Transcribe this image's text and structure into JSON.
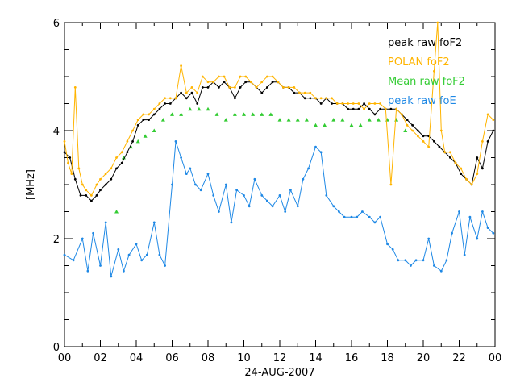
{
  "chart_data": {
    "type": "line",
    "title": "",
    "xlabel": "24-AUG-2007",
    "ylabel": "[MHz]",
    "xlim": [
      0,
      24
    ],
    "ylim": [
      0,
      6
    ],
    "x_tick_labels": [
      "00",
      "02",
      "04",
      "06",
      "08",
      "10",
      "12",
      "14",
      "16",
      "18",
      "20",
      "22",
      "00"
    ],
    "y_tick_labels": [
      "0",
      "2",
      "4",
      "6"
    ],
    "grid": false,
    "legend_position": "top-right",
    "colors": {
      "peak_raw_foF2": "#000000",
      "polan_foF2": "#ffb400",
      "mean_raw_foF2": "#33cc33",
      "peak_raw_foE": "#1e88e5"
    },
    "series": [
      {
        "name": "peak raw foF2",
        "style": "line+dots",
        "x": [
          0.0,
          0.3,
          0.6,
          0.9,
          1.2,
          1.5,
          1.8,
          2.0,
          2.3,
          2.6,
          2.9,
          3.2,
          3.5,
          3.8,
          4.1,
          4.4,
          4.7,
          5.0,
          5.3,
          5.6,
          5.9,
          6.2,
          6.5,
          6.8,
          7.1,
          7.4,
          7.7,
          8.0,
          8.3,
          8.6,
          8.9,
          9.2,
          9.5,
          9.8,
          10.1,
          10.4,
          10.7,
          11.0,
          11.3,
          11.6,
          11.9,
          12.2,
          12.5,
          12.8,
          13.1,
          13.4,
          13.7,
          14.0,
          14.3,
          14.6,
          14.9,
          15.2,
          15.5,
          15.8,
          16.1,
          16.4,
          16.7,
          17.0,
          17.3,
          17.6,
          17.9,
          18.2,
          18.5,
          18.8,
          19.1,
          19.4,
          19.7,
          20.0,
          20.3,
          20.6,
          20.9,
          21.2,
          21.5,
          21.8,
          22.1,
          22.4,
          22.7,
          23.0,
          23.3,
          23.6,
          23.9
        ],
        "y": [
          3.6,
          3.5,
          3.1,
          2.8,
          2.8,
          2.7,
          2.8,
          2.9,
          3.0,
          3.1,
          3.3,
          3.4,
          3.6,
          3.8,
          4.1,
          4.2,
          4.2,
          4.3,
          4.4,
          4.5,
          4.5,
          4.6,
          4.7,
          4.6,
          4.7,
          4.5,
          4.8,
          4.8,
          4.9,
          4.8,
          4.9,
          4.8,
          4.6,
          4.8,
          4.9,
          4.9,
          4.8,
          4.7,
          4.8,
          4.9,
          4.9,
          4.8,
          4.8,
          4.7,
          4.7,
          4.6,
          4.6,
          4.6,
          4.5,
          4.6,
          4.5,
          4.5,
          4.5,
          4.4,
          4.4,
          4.4,
          4.5,
          4.4,
          4.3,
          4.4,
          4.4,
          4.4,
          4.4,
          4.3,
          4.2,
          4.1,
          4.0,
          3.9,
          3.9,
          3.8,
          3.7,
          3.6,
          3.5,
          3.4,
          3.2,
          3.1,
          3.0,
          3.5,
          3.3,
          3.8,
          4.0
        ]
      },
      {
        "name": "POLAN foF2",
        "style": "line+dots",
        "x": [
          0.0,
          0.2,
          0.4,
          0.6,
          0.8,
          1.0,
          1.2,
          1.5,
          1.8,
          2.0,
          2.3,
          2.6,
          2.9,
          3.2,
          3.5,
          3.8,
          4.1,
          4.4,
          4.7,
          5.0,
          5.3,
          5.6,
          5.9,
          6.2,
          6.5,
          6.8,
          7.1,
          7.4,
          7.7,
          8.0,
          8.3,
          8.6,
          8.9,
          9.2,
          9.5,
          9.8,
          10.1,
          10.4,
          10.7,
          11.0,
          11.3,
          11.6,
          11.9,
          12.2,
          12.5,
          12.8,
          13.1,
          13.4,
          13.7,
          14.0,
          14.3,
          14.6,
          14.9,
          15.2,
          15.5,
          15.8,
          16.1,
          16.4,
          16.7,
          17.0,
          17.3,
          17.6,
          17.9,
          18.2,
          18.5,
          18.8,
          19.1,
          19.4,
          19.7,
          20.0,
          20.3,
          20.6,
          20.8,
          21.0,
          21.2,
          21.5,
          21.8,
          22.1,
          22.4,
          22.7,
          23.0,
          23.3,
          23.6,
          23.9
        ],
        "y": [
          3.8,
          3.4,
          3.2,
          4.8,
          3.3,
          3.0,
          2.9,
          2.8,
          3.0,
          3.1,
          3.2,
          3.3,
          3.5,
          3.6,
          3.8,
          4.0,
          4.2,
          4.3,
          4.3,
          4.4,
          4.5,
          4.6,
          4.6,
          4.6,
          5.2,
          4.7,
          4.8,
          4.7,
          5.0,
          4.9,
          4.9,
          5.0,
          5.0,
          4.8,
          4.8,
          5.0,
          5.0,
          4.9,
          4.8,
          4.9,
          5.0,
          5.0,
          4.9,
          4.8,
          4.8,
          4.8,
          4.7,
          4.7,
          4.7,
          4.6,
          4.6,
          4.6,
          4.6,
          4.5,
          4.5,
          4.5,
          4.5,
          4.5,
          4.4,
          4.5,
          4.5,
          4.5,
          4.4,
          3.0,
          4.4,
          4.3,
          4.1,
          4.0,
          3.9,
          3.8,
          3.7,
          5.1,
          6.0,
          4.0,
          3.6,
          3.6,
          3.4,
          3.3,
          3.1,
          3.0,
          3.2,
          3.8,
          4.3,
          4.2
        ]
      },
      {
        "name": "Mean raw foF2",
        "style": "markers",
        "marker": "triangle",
        "x": [
          2.9,
          3.3,
          3.7,
          4.1,
          4.5,
          5.0,
          5.5,
          6.0,
          6.5,
          7.0,
          7.5,
          8.0,
          8.5,
          9.0,
          9.5,
          10.0,
          10.5,
          11.0,
          11.5,
          12.0,
          12.5,
          13.0,
          13.5,
          14.0,
          14.5,
          15.0,
          15.5,
          16.0,
          16.5,
          17.0,
          17.5,
          18.0,
          18.5,
          19.0
        ],
        "y": [
          2.5,
          3.5,
          3.7,
          3.8,
          3.9,
          4.0,
          4.2,
          4.3,
          4.3,
          4.4,
          4.4,
          4.4,
          4.3,
          4.2,
          4.3,
          4.3,
          4.3,
          4.3,
          4.3,
          4.2,
          4.2,
          4.2,
          4.2,
          4.1,
          4.1,
          4.2,
          4.2,
          4.1,
          4.1,
          4.2,
          4.2,
          4.2,
          4.2,
          4.0
        ]
      },
      {
        "name": "peak raw foE",
        "style": "line+dots",
        "x": [
          0.0,
          0.5,
          1.0,
          1.3,
          1.6,
          2.0,
          2.3,
          2.6,
          3.0,
          3.3,
          3.6,
          4.0,
          4.3,
          4.6,
          5.0,
          5.3,
          5.6,
          6.0,
          6.2,
          6.5,
          6.8,
          7.0,
          7.3,
          7.6,
          8.0,
          8.3,
          8.6,
          9.0,
          9.3,
          9.6,
          10.0,
          10.3,
          10.6,
          11.0,
          11.3,
          11.6,
          12.0,
          12.3,
          12.6,
          13.0,
          13.3,
          13.6,
          14.0,
          14.3,
          14.6,
          15.0,
          15.3,
          15.6,
          16.0,
          16.3,
          16.6,
          17.0,
          17.3,
          17.6,
          18.0,
          18.3,
          18.6,
          19.0,
          19.3,
          19.6,
          20.0,
          20.3,
          20.6,
          21.0,
          21.3,
          21.6,
          22.0,
          22.3,
          22.6,
          23.0,
          23.3,
          23.6,
          23.9
        ],
        "y": [
          1.7,
          1.6,
          2.0,
          1.4,
          2.1,
          1.5,
          2.3,
          1.3,
          1.8,
          1.4,
          1.7,
          1.9,
          1.6,
          1.7,
          2.3,
          1.7,
          1.5,
          3.0,
          3.8,
          3.5,
          3.2,
          3.3,
          3.0,
          2.9,
          3.2,
          2.8,
          2.5,
          3.0,
          2.3,
          2.9,
          2.8,
          2.6,
          3.1,
          2.8,
          2.7,
          2.6,
          2.8,
          2.5,
          2.9,
          2.6,
          3.1,
          3.3,
          3.7,
          3.6,
          2.8,
          2.6,
          2.5,
          2.4,
          2.4,
          2.4,
          2.5,
          2.4,
          2.3,
          2.4,
          1.9,
          1.8,
          1.6,
          1.6,
          1.5,
          1.6,
          1.6,
          2.0,
          1.5,
          1.4,
          1.6,
          2.1,
          2.5,
          1.7,
          2.4,
          2.0,
          2.5,
          2.2,
          2.1
        ]
      }
    ]
  }
}
